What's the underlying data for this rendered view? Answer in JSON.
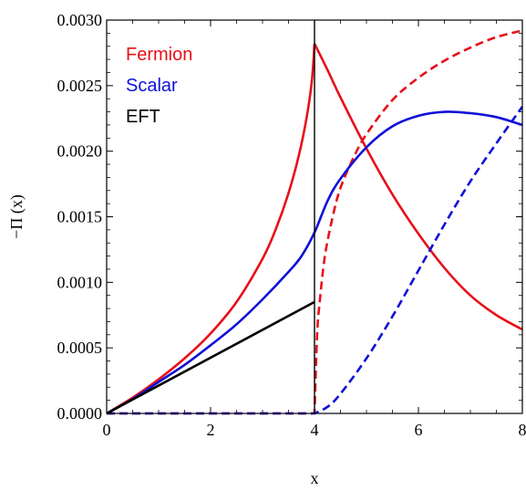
{
  "chart_data": {
    "type": "line",
    "title": "",
    "xlabel": "x",
    "ylabel": "−Π (x)",
    "xlim": [
      0,
      8
    ],
    "ylim": [
      0,
      0.003
    ],
    "xticks": [
      0,
      2,
      4,
      6,
      8
    ],
    "xtick_labels": [
      "0",
      "2",
      "4",
      "6",
      "8"
    ],
    "yticks": [
      0,
      0.0005,
      0.001,
      0.0015,
      0.002,
      0.0025,
      0.003
    ],
    "ytick_labels": [
      "0.0000",
      "0.0005",
      "0.0010",
      "0.0015",
      "0.0020",
      "0.0025",
      "0.0030"
    ],
    "grid": false,
    "legend_position": "top-left",
    "legend": [
      {
        "label": "Fermion",
        "color": "#e8101a"
      },
      {
        "label": "Scalar",
        "color": "#1010d8"
      },
      {
        "label": "EFT",
        "color": "#000000"
      }
    ],
    "reference_line": {
      "x": 4,
      "color": "#000000"
    },
    "series": [
      {
        "id": "fermion-solid",
        "legend_ref": "Fermion",
        "color": "#e8101a",
        "dash": false,
        "x": [
          0,
          0.5,
          1,
          1.5,
          2,
          2.5,
          3,
          3.25,
          3.5,
          3.7,
          3.85,
          3.95,
          4,
          4.25,
          4.5,
          5,
          5.5,
          6,
          6.5,
          7,
          7.5,
          8
        ],
        "y": [
          0,
          0.00012,
          0.00026,
          0.00042,
          0.00061,
          0.00085,
          0.00118,
          0.0014,
          0.00168,
          0.00197,
          0.00226,
          0.00254,
          0.00282,
          0.00262,
          0.00241,
          0.00202,
          0.00167,
          0.00137,
          0.00111,
          0.0009,
          0.00075,
          0.00064
        ]
      },
      {
        "id": "fermion-dashed",
        "legend_ref": "Fermion",
        "color": "#e8101a",
        "dash": true,
        "x": [
          0,
          4,
          4.05,
          4.1,
          4.2,
          4.35,
          4.5,
          4.75,
          5,
          5.5,
          6,
          6.5,
          7,
          7.5,
          8
        ],
        "y": [
          0,
          0,
          0.0006,
          0.00085,
          0.0012,
          0.0015,
          0.00172,
          0.00195,
          0.00213,
          0.00239,
          0.00256,
          0.00269,
          0.00279,
          0.00287,
          0.00292
        ]
      },
      {
        "id": "scalar-solid",
        "legend_ref": "Scalar",
        "color": "#1010d8",
        "dash": false,
        "x": [
          0,
          0.5,
          1,
          1.5,
          2,
          2.5,
          3,
          3.5,
          3.75,
          4,
          4.25,
          4.5,
          5,
          5.5,
          6,
          6.5,
          7,
          7.5,
          8
        ],
        "y": [
          0,
          0.00011,
          0.00024,
          0.00037,
          0.00052,
          0.00068,
          0.00087,
          0.00108,
          0.0012,
          0.00138,
          0.00162,
          0.00179,
          0.00203,
          0.00219,
          0.00227,
          0.0023,
          0.00229,
          0.00226,
          0.0022
        ]
      },
      {
        "id": "scalar-dashed",
        "legend_ref": "Scalar",
        "color": "#1010d8",
        "dash": true,
        "x": [
          0,
          4,
          4.25,
          4.5,
          5,
          5.5,
          6,
          6.5,
          7,
          7.5,
          8
        ],
        "y": [
          0,
          0,
          5e-05,
          0.00015,
          0.00042,
          0.00074,
          0.00109,
          0.00144,
          0.00177,
          0.00206,
          0.00234
        ]
      },
      {
        "id": "eft-solid",
        "legend_ref": "EFT",
        "color": "#000000",
        "dash": false,
        "x": [
          0,
          4
        ],
        "y": [
          0,
          0.00085
        ]
      }
    ]
  }
}
